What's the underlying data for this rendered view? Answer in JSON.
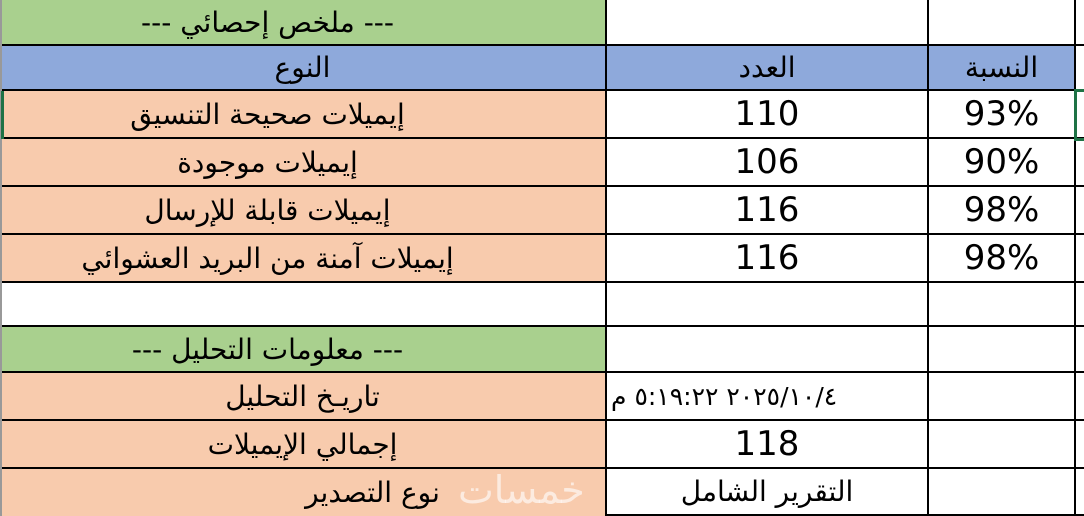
{
  "colors": {
    "section_header_fill": "#A9D08E",
    "table_header_fill": "#8EA9DB",
    "label_fill": "#F8CBAD",
    "selection_outline": "#1E7245",
    "grid_border": "#000000"
  },
  "summary": {
    "title": "--- ملخص إحصائي ---",
    "headers": {
      "type": "النوع",
      "count": "العدد",
      "percent": "النسبة"
    },
    "rows": [
      {
        "type": "إيميلات صحيحة التنسيق",
        "count": "110",
        "percent": "93%"
      },
      {
        "type": "إيميلات موجودة",
        "count": "106",
        "percent": "90%"
      },
      {
        "type": "إيميلات قابلة للإرسال",
        "count": "116",
        "percent": "98%"
      },
      {
        "type": "إيميلات آمنة من البريد العشوائي",
        "count": "116",
        "percent": "98%"
      }
    ]
  },
  "analysis": {
    "title": "--- معلومات التحليل ---",
    "date_label": "تاريـخ التحليل",
    "date_value": "٢٠٢٥/١٠/٤ ٥:١٩:٢٢ م",
    "total_label": "إجمالي الإيميلات",
    "total_value": "118",
    "export_label": "نوع التصدير",
    "export_value": "التقرير الشامل"
  },
  "watermark": "خمسات"
}
